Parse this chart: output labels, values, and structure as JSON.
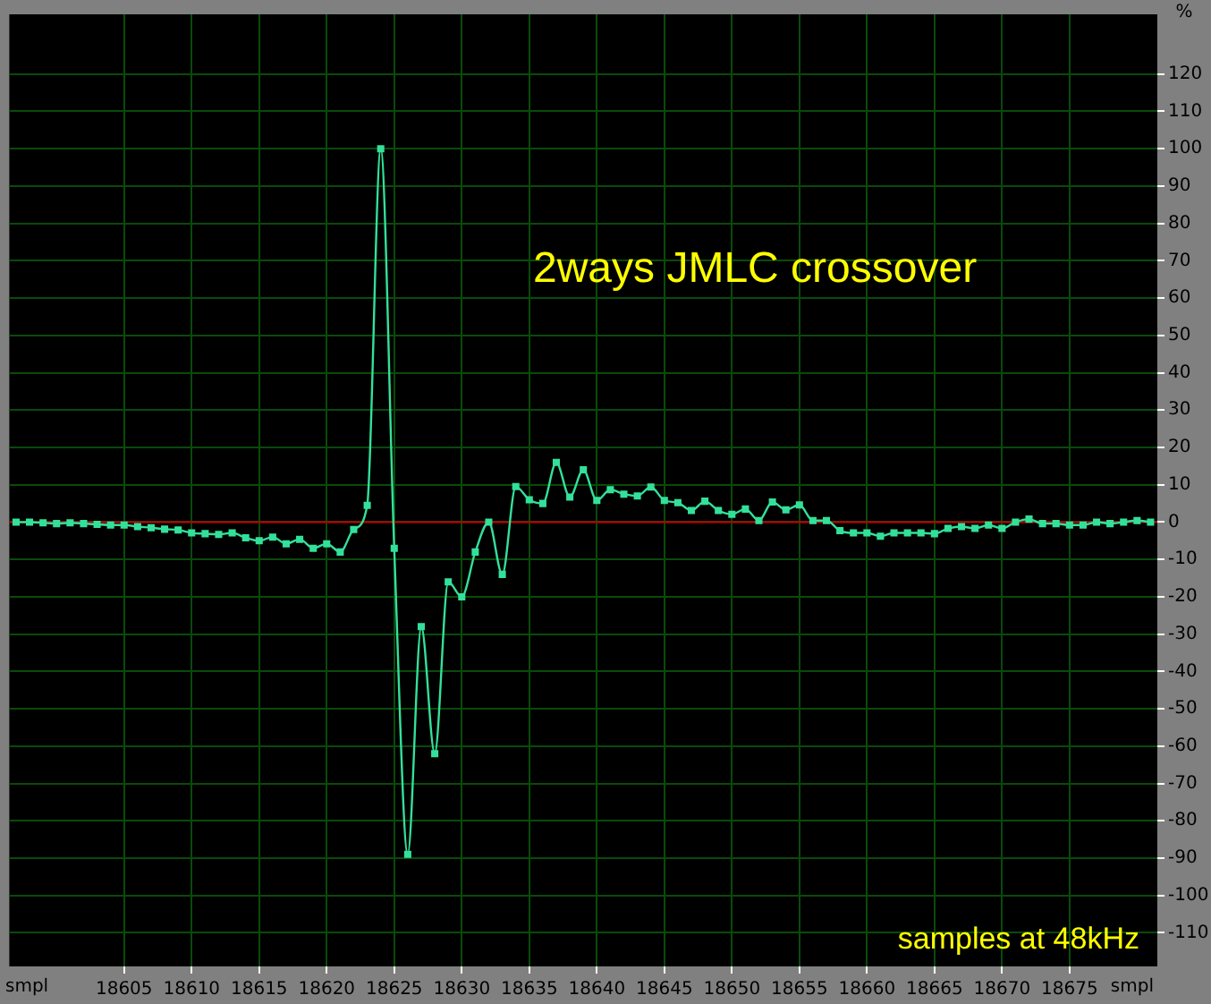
{
  "chart_data": {
    "type": "line",
    "title": "2ways JMLC crossover",
    "xlabel": "smpl",
    "ylabel": "%",
    "annotations": [
      "samples at 48kHz"
    ],
    "x": [
      18597,
      18598,
      18599,
      18600,
      18601,
      18602,
      18603,
      18604,
      18605,
      18606,
      18607,
      18608,
      18609,
      18610,
      18611,
      18612,
      18613,
      18614,
      18615,
      18616,
      18617,
      18618,
      18619,
      18620,
      18621,
      18622,
      18623,
      18624,
      18625,
      18626,
      18627,
      18628,
      18629,
      18630,
      18631,
      18632,
      18633,
      18634,
      18635,
      18636,
      18637,
      18638,
      18639,
      18640,
      18641,
      18642,
      18643,
      18644,
      18645,
      18646,
      18647,
      18648,
      18649,
      18650,
      18651,
      18652,
      18653,
      18654,
      18655,
      18656,
      18657,
      18658,
      18659,
      18660,
      18661,
      18662,
      18663,
      18664,
      18665,
      18666,
      18667,
      18668,
      18669,
      18670,
      18671,
      18672,
      18673,
      18674,
      18675,
      18676,
      18677,
      18678,
      18679,
      18680,
      18681
    ],
    "series": [
      {
        "color": "#33e09a",
        "values": [
          0,
          0,
          -0.2,
          -0.4,
          -0.2,
          -0.4,
          -0.6,
          -0.8,
          -0.8,
          -1.2,
          -1.5,
          -1.9,
          -2.1,
          -2.9,
          -3.1,
          -3.3,
          -2.9,
          -4.2,
          -5,
          -4,
          -5.8,
          -4.6,
          -7,
          -5.8,
          -8,
          -2,
          4.5,
          100,
          -7,
          -89,
          -28,
          -62,
          -16,
          -20,
          -8,
          0,
          -14,
          9.5,
          6,
          5,
          16,
          6.7,
          14,
          5.8,
          8.7,
          7.5,
          7,
          9.4,
          5.8,
          5.2,
          3.1,
          5.6,
          3.1,
          2.1,
          3.5,
          0.4,
          5.4,
          3.3,
          4.6,
          0.4,
          0.4,
          -2.3,
          -2.9,
          -2.9,
          -3.8,
          -2.9,
          -2.9,
          -2.9,
          -3.1,
          -1.7,
          -1.2,
          -1.7,
          -0.8,
          -1.7,
          0,
          0.8,
          -0.4,
          -0.4,
          -0.8,
          -0.8,
          0,
          -0.4,
          0,
          0.4,
          0
        ]
      }
    ],
    "xlim": [
      18596.5,
      18681.5
    ],
    "xticks": [
      18605,
      18610,
      18615,
      18620,
      18625,
      18630,
      18635,
      18640,
      18645,
      18650,
      18655,
      18660,
      18665,
      18670,
      18675
    ],
    "ylim": [
      -119,
      136
    ],
    "yticks": [
      -110,
      -100,
      -90,
      -80,
      -70,
      -60,
      -50,
      -40,
      -30,
      -20,
      -10,
      0,
      10,
      20,
      30,
      40,
      50,
      60,
      70,
      80,
      90,
      100,
      110,
      120
    ],
    "ref_lines": [
      {
        "axis": "y",
        "value": 0,
        "color": "#c00000"
      }
    ],
    "grid": true,
    "legend": false,
    "marker": "square",
    "line_style": "solid"
  }
}
